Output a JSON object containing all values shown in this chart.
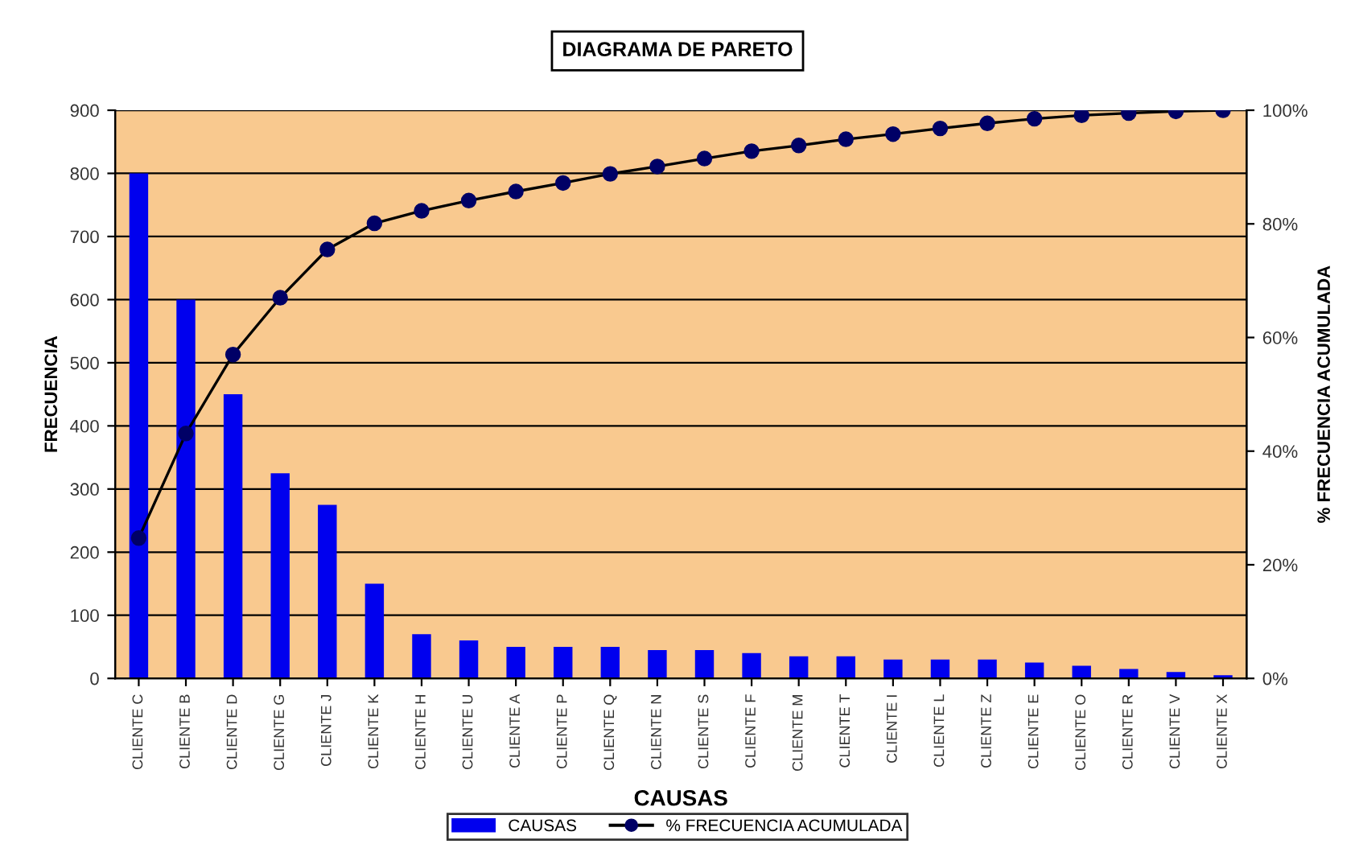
{
  "chart_data": {
    "type": "bar",
    "title": "DIAGRAMA DE PARETO",
    "xlabel": "CAUSAS",
    "ylabel": "FRECUENCIA",
    "y2label": "% FRECUENCIA ACUMULADA",
    "categories": [
      "CLIENTE C",
      "CLIENTE B",
      "CLIENTE D",
      "CLIENTE G",
      "CLIENTE J",
      "CLIENTE K",
      "CLIENTE H",
      "CLIENTE U",
      "CLIENTE A",
      "CLIENTE P",
      "CLIENTE Q",
      "CLIENTE N",
      "CLIENTE S",
      "CLIENTE F",
      "CLIENTE M",
      "CLIENTE T",
      "CLIENTE I",
      "CLIENTE L",
      "CLIENTE Z",
      "CLIENTE E",
      "CLIENTE O",
      "CLIENTE R",
      "CLIENTE V",
      "CLIENTE X"
    ],
    "series": [
      {
        "name": "CAUSAS",
        "color": "#0000ee",
        "values": [
          800,
          600,
          450,
          325,
          275,
          150,
          70,
          60,
          50,
          50,
          50,
          45,
          45,
          40,
          35,
          35,
          30,
          30,
          30,
          25,
          20,
          15,
          10,
          5
        ]
      },
      {
        "name": "% FRECUENCIA ACUMULADA",
        "type": "line",
        "axis": "y2",
        "color": "#000066",
        "marker": "circle",
        "values": [
          24.7,
          43.1,
          57.0,
          67.0,
          75.5,
          80.1,
          82.3,
          84.1,
          85.7,
          87.2,
          88.8,
          90.1,
          91.5,
          92.8,
          93.8,
          94.9,
          95.8,
          96.8,
          97.7,
          98.5,
          99.1,
          99.5,
          99.8,
          100
        ]
      }
    ],
    "ylim": [
      0,
      900
    ],
    "yticks": [
      0,
      100,
      200,
      300,
      400,
      500,
      600,
      700,
      800,
      900
    ],
    "y2lim": [
      0,
      100
    ],
    "y2ticks": [
      {
        "value": 0,
        "label": "0%"
      },
      {
        "value": 20,
        "label": "20%"
      },
      {
        "value": 40,
        "label": "40%"
      },
      {
        "value": 60,
        "label": "60%"
      },
      {
        "value": 80,
        "label": "80%"
      },
      {
        "value": 100,
        "label": "100%"
      }
    ],
    "grid": "y",
    "legend": "bottom"
  }
}
